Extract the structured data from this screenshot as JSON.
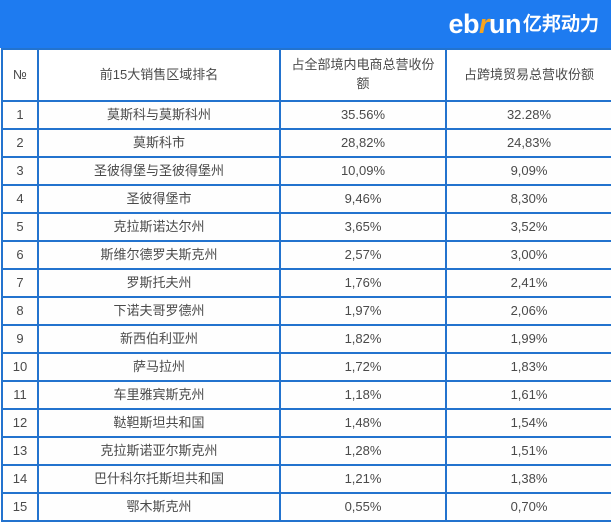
{
  "brand": {
    "bar_color": "#1e7bf0",
    "accent_color": "#f7a41d",
    "logo": {
      "eb": "eb",
      "r": "r",
      "un": "un",
      "suffix_cn": "亿邦动力"
    }
  },
  "table": {
    "border_color": "#2373ce",
    "text_color": "#4a4a4a"
  },
  "chart_data": {
    "type": "table",
    "title": "",
    "legend_position": "none",
    "grid": true,
    "columns": [
      "№",
      "前15大销售区域排名",
      "占全部境内电商总营收份额",
      "占跨境贸易总营收份额"
    ],
    "rows": [
      [
        "1",
        "莫斯科与莫斯科州",
        "35.56%",
        "32.28%"
      ],
      [
        "2",
        "莫斯科市",
        "28,82%",
        "24,83%"
      ],
      [
        "3",
        "圣彼得堡与圣彼得堡州",
        "10,09%",
        "9,09%"
      ],
      [
        "4",
        "圣彼得堡市",
        "9,46%",
        "8,30%"
      ],
      [
        "5",
        "克拉斯诺达尔州",
        "3,65%",
        "3,52%"
      ],
      [
        "6",
        "斯维尔德罗夫斯克州",
        "2,57%",
        "3,00%"
      ],
      [
        "7",
        "罗斯托夫州",
        "1,76%",
        "2,41%"
      ],
      [
        "8",
        "下诺夫哥罗德州",
        "1,97%",
        "2,06%"
      ],
      [
        "9",
        "新西伯利亚州",
        "1,82%",
        "1,99%"
      ],
      [
        "10",
        "萨马拉州",
        "1,72%",
        "1,83%"
      ],
      [
        "11",
        "车里雅宾斯克州",
        "1,18%",
        "1,61%"
      ],
      [
        "12",
        "鞑靼斯坦共和国",
        "1,48%",
        "1,54%"
      ],
      [
        "13",
        "克拉斯诺亚尔斯克州",
        "1,28%",
        "1,51%"
      ],
      [
        "14",
        "巴什科尔托斯坦共和国",
        "1,21%",
        "1,38%"
      ],
      [
        "15",
        "鄂木斯克州",
        "0,55%",
        "0,70%"
      ]
    ]
  }
}
